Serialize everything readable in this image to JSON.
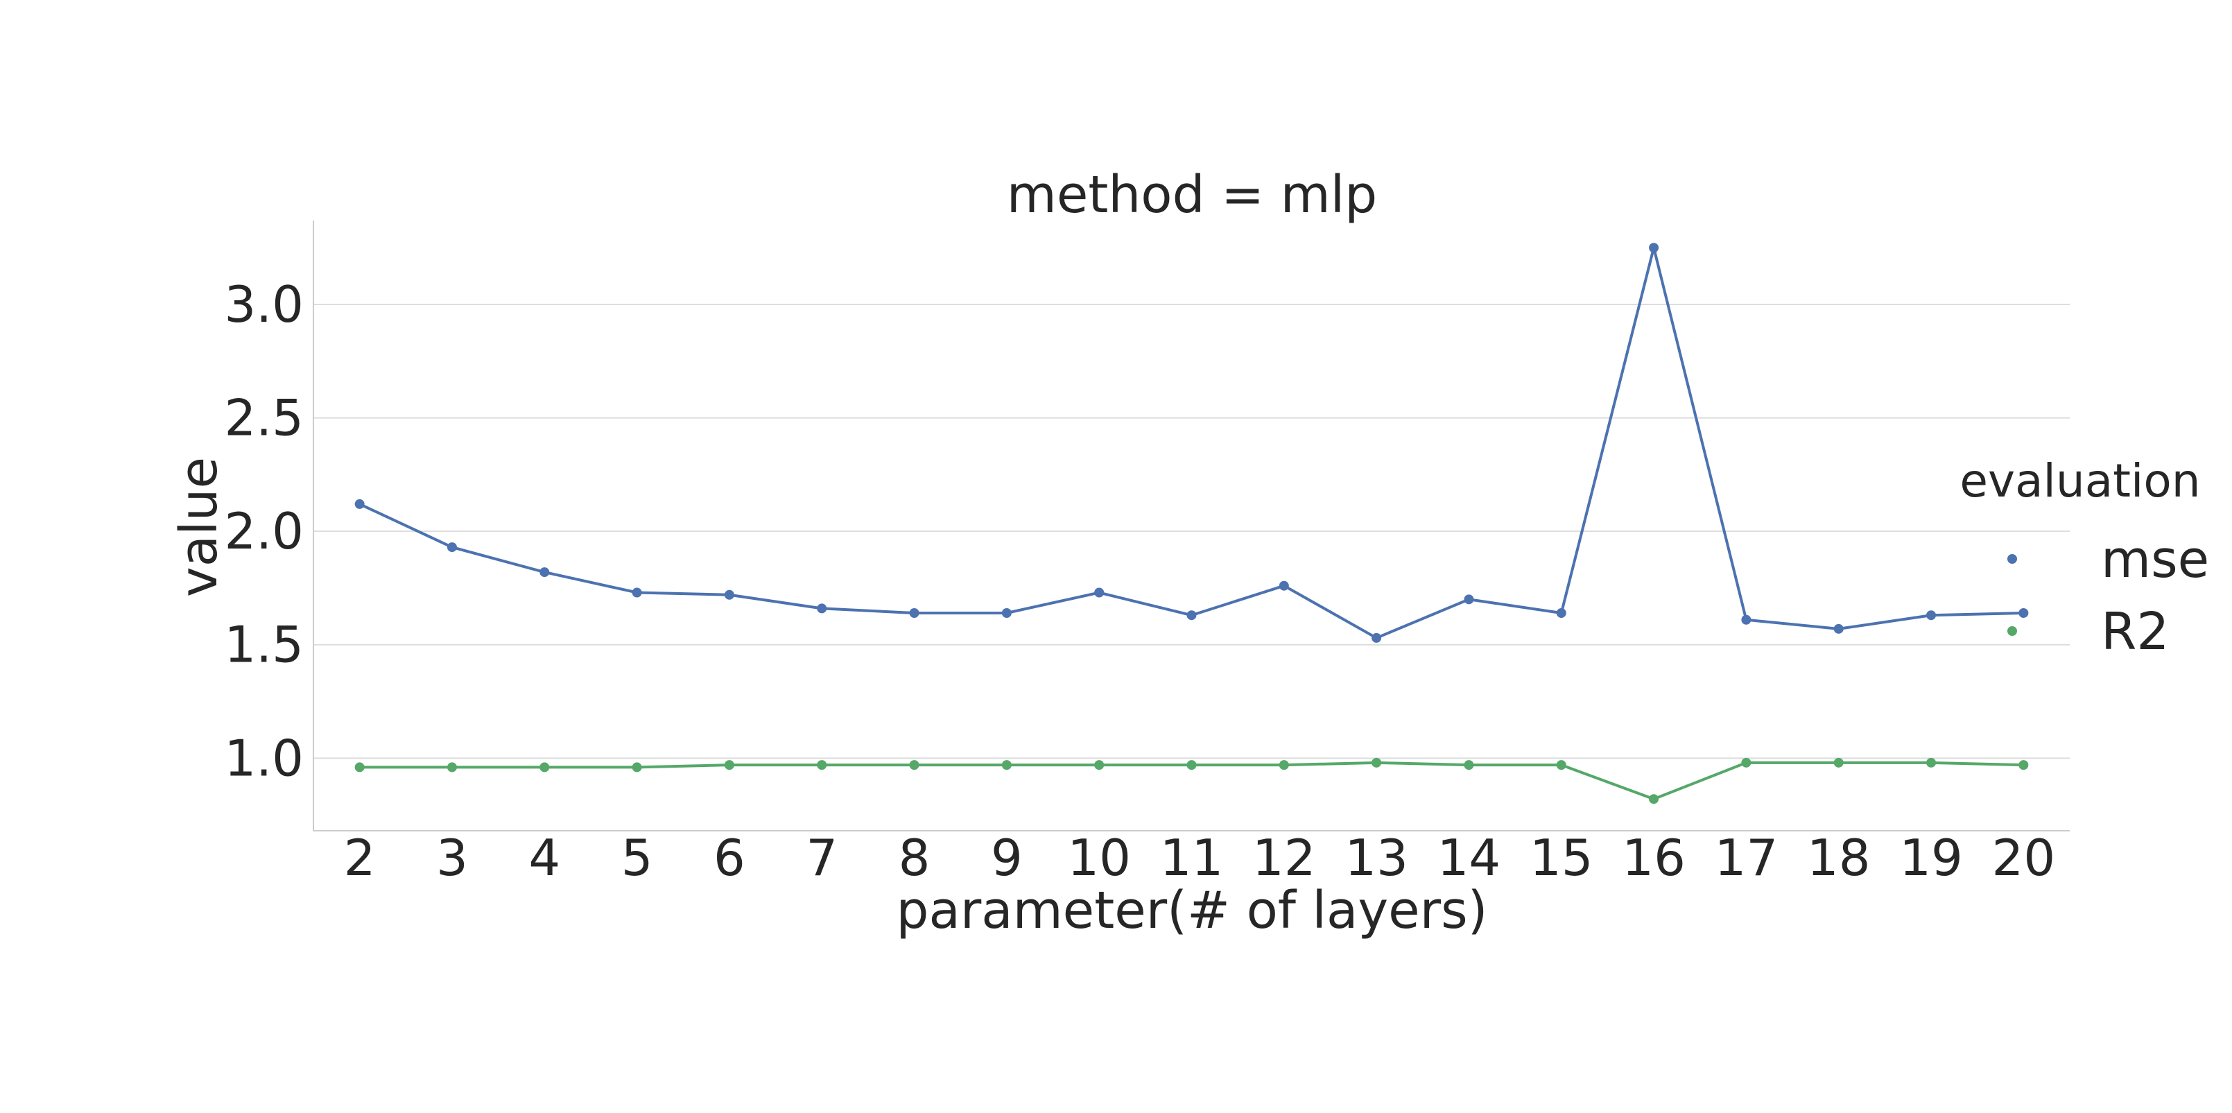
{
  "chart_data": {
    "type": "line",
    "title": "method = mlp",
    "xlabel": "parameter(# of layers)",
    "ylabel": "value",
    "x": [
      2,
      3,
      4,
      5,
      6,
      7,
      8,
      9,
      10,
      11,
      12,
      13,
      14,
      15,
      16,
      17,
      18,
      19,
      20
    ],
    "xlim": [
      1.5,
      20.5
    ],
    "ylim": [
      0.68,
      3.37
    ],
    "yticks": [
      1.0,
      1.5,
      2.0,
      2.5,
      3.0
    ],
    "ytick_labels": [
      "1.0",
      "1.5",
      "2.0",
      "2.5",
      "3.0"
    ],
    "xtick_labels": [
      "2",
      "3",
      "4",
      "5",
      "6",
      "7",
      "8",
      "9",
      "10",
      "11",
      "12",
      "13",
      "14",
      "15",
      "16",
      "17",
      "18",
      "19",
      "20"
    ],
    "grid": "horizontal",
    "legend": {
      "title": "evaluation",
      "placement": "right"
    },
    "series": [
      {
        "name": "mse",
        "color": "#4c72b0",
        "values": [
          2.12,
          1.93,
          1.82,
          1.73,
          1.72,
          1.66,
          1.64,
          1.64,
          1.73,
          1.63,
          1.76,
          1.53,
          1.7,
          1.64,
          3.25,
          1.61,
          1.57,
          1.63,
          1.64
        ]
      },
      {
        "name": "R2",
        "color": "#55a868",
        "values": [
          0.96,
          0.96,
          0.96,
          0.96,
          0.97,
          0.97,
          0.97,
          0.97,
          0.97,
          0.97,
          0.97,
          0.98,
          0.97,
          0.97,
          0.82,
          0.98,
          0.98,
          0.98,
          0.97
        ]
      }
    ]
  }
}
